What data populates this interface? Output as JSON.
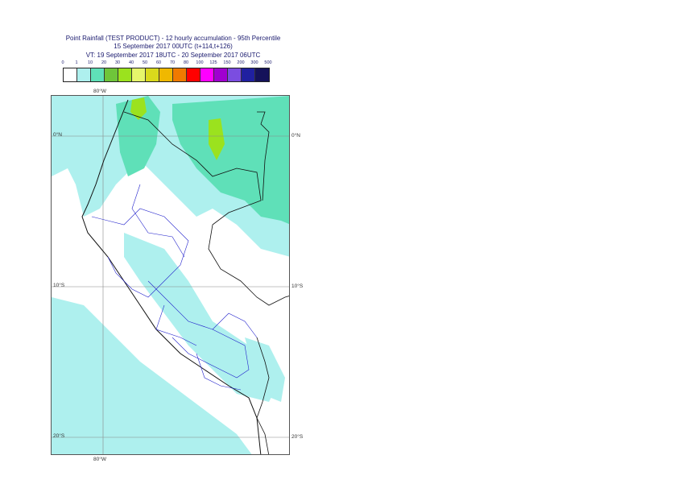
{
  "title": {
    "line1": "Point Rainfall (TEST PRODUCT) - 12 hourly accumulation - 95th Percentile",
    "line2": "15 September 2017 00UTC (t+114,t+126)",
    "line3": "VT: 19 September 2017 18UTC - 20 September 2017 06UTC"
  },
  "legend": {
    "ticks": [
      "0",
      "1",
      "10",
      "20",
      "30",
      "40",
      "50",
      "60",
      "70",
      "80",
      "100",
      "125",
      "150",
      "200",
      "300",
      "500"
    ],
    "colors": [
      "#ffffff",
      "#aef0ee",
      "#5fe0b8",
      "#6fc53a",
      "#9be21e",
      "#e6f56b",
      "#d9d91c",
      "#f0b800",
      "#f07a00",
      "#ff0000",
      "#ff00ff",
      "#a000d0",
      "#7b4de0",
      "#2020a0",
      "#15125a"
    ]
  },
  "axes": {
    "lon_top": "80°W",
    "lon_bottom": "80°W",
    "lat_0_left": "0°N",
    "lat_0_right": "0°N",
    "lat_10_left": "10°S",
    "lat_10_right": "10°S",
    "lat_20_left": "20°S",
    "lat_20_right": "20°S"
  }
}
